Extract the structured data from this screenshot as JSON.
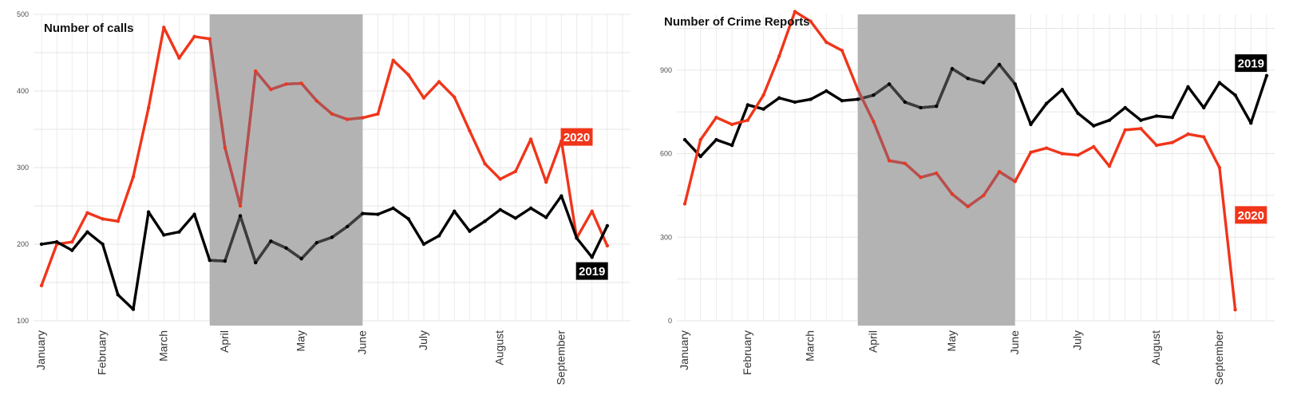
{
  "chart_data": [
    {
      "type": "line",
      "title": "Number of calls",
      "xlabel": "",
      "ylabel": "",
      "ylim": [
        100,
        500
      ],
      "yticks": [
        100,
        200,
        300,
        400,
        500
      ],
      "x_range": [
        0,
        38
      ],
      "month_ticks": [
        {
          "label": "January",
          "x": 0
        },
        {
          "label": "February",
          "x": 4
        },
        {
          "label": "March",
          "x": 8
        },
        {
          "label": "April",
          "x": 12
        },
        {
          "label": "May",
          "x": 17
        },
        {
          "label": "June",
          "x": 21
        },
        {
          "label": "July",
          "x": 25
        },
        {
          "label": "August",
          "x": 30
        },
        {
          "label": "September",
          "x": 34
        }
      ],
      "shaded_range": [
        11,
        21
      ],
      "grid": true,
      "series": [
        {
          "name": "2020",
          "color": "#f0351a",
          "shade_color": "#b55050",
          "label_at": [
            35,
            340
          ],
          "values": [
            146,
            200,
            203,
            241,
            233,
            230,
            288,
            378,
            483,
            443,
            471,
            468,
            326,
            250,
            426,
            402,
            409,
            410,
            387,
            370,
            363,
            365,
            370,
            440,
            421,
            391,
            412,
            392,
            348,
            305,
            285,
            295,
            337,
            281,
            335,
            208,
            243,
            198
          ]
        },
        {
          "name": "2019",
          "color": "#000000",
          "shade_color": "#3c3c3c",
          "label_at": [
            36,
            165
          ],
          "values": [
            200,
            203,
            192,
            216,
            200,
            134,
            115,
            242,
            212,
            216,
            239,
            179,
            178,
            237,
            176,
            204,
            195,
            181,
            202,
            209,
            223,
            240,
            239,
            247,
            233,
            200,
            211,
            243,
            217,
            230,
            245,
            234,
            247,
            235,
            263,
            208,
            183,
            224
          ]
        }
      ]
    },
    {
      "type": "line",
      "title": "Number of Crime Reports",
      "xlabel": "",
      "ylabel": "",
      "ylim": [
        0,
        1100
      ],
      "yticks": [
        0,
        300,
        600,
        900
      ],
      "x_range": [
        0,
        37
      ],
      "month_ticks": [
        {
          "label": "January",
          "x": 0
        },
        {
          "label": "February",
          "x": 4
        },
        {
          "label": "March",
          "x": 8
        },
        {
          "label": "April",
          "x": 12
        },
        {
          "label": "May",
          "x": 17
        },
        {
          "label": "June",
          "x": 21
        },
        {
          "label": "July",
          "x": 25
        },
        {
          "label": "August",
          "x": 30
        },
        {
          "label": "September",
          "x": 34
        }
      ],
      "shaded_range": [
        11,
        21
      ],
      "grid": true,
      "series": [
        {
          "name": "2019",
          "color": "#000000",
          "shade_color": "#3c3c3c",
          "label_at": [
            36,
            925
          ],
          "values": [
            650,
            590,
            650,
            630,
            775,
            760,
            800,
            785,
            795,
            825,
            790,
            795,
            810,
            850,
            785,
            765,
            770,
            905,
            870,
            855,
            920,
            850,
            705,
            780,
            830,
            745,
            700,
            720,
            765,
            720,
            735,
            730,
            840,
            765,
            855,
            810,
            710,
            880
          ]
        },
        {
          "name": "2020",
          "color": "#f0351a",
          "shade_color": "#b55050",
          "label_at": [
            36,
            380
          ],
          "values": [
            420,
            650,
            730,
            705,
            720,
            810,
            950,
            1110,
            1075,
            1000,
            970,
            830,
            715,
            575,
            565,
            515,
            530,
            455,
            410,
            450,
            535,
            500,
            605,
            620,
            600,
            595,
            625,
            555,
            685,
            690,
            630,
            640,
            670,
            660,
            550,
            40
          ]
        }
      ]
    }
  ]
}
